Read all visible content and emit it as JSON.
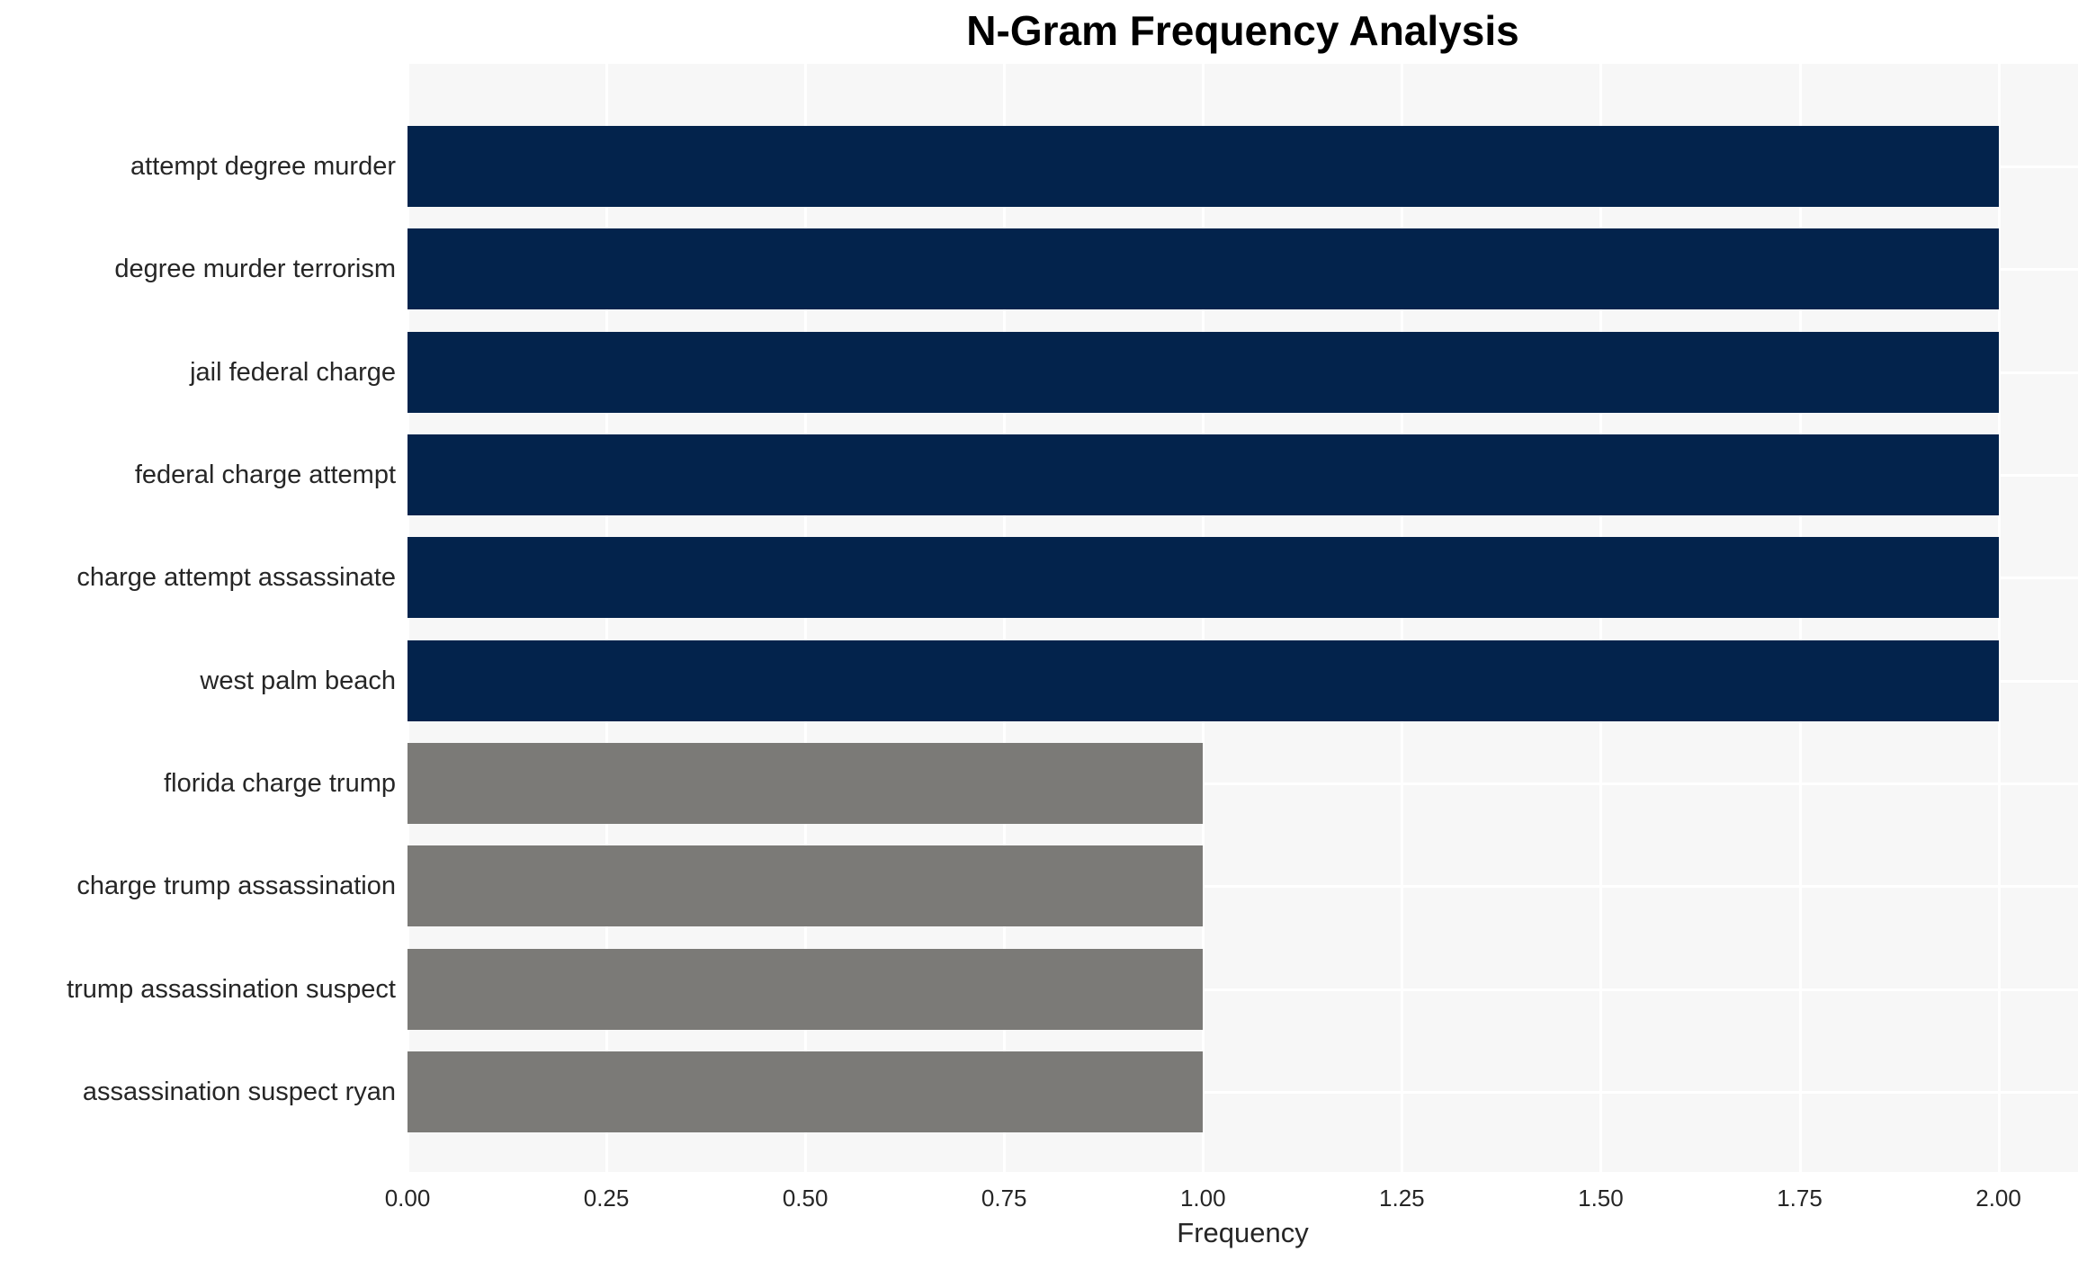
{
  "title": "N-Gram Frequency Analysis",
  "x_axis": {
    "label": "Frequency",
    "tick_labels": [
      "0.00",
      "0.25",
      "0.50",
      "0.75",
      "1.00",
      "1.25",
      "1.50",
      "1.75",
      "2.00"
    ],
    "tick_values": [
      0,
      0.25,
      0.5,
      0.75,
      1.0,
      1.25,
      1.5,
      1.75,
      2.0
    ]
  },
  "colors": {
    "navy_bar": "#03234c",
    "gray_bar": "#7b7a77",
    "plot_background": "#f7f7f7",
    "gridline": "#ffffff",
    "text": "#262626",
    "title_text": "#000000"
  },
  "chart_data": {
    "type": "bar",
    "orientation": "horizontal",
    "title": "N-Gram Frequency Analysis",
    "xlabel": "Frequency",
    "ylabel": "",
    "categories": [
      "attempt degree murder",
      "degree murder terrorism",
      "jail federal charge",
      "federal charge attempt",
      "charge attempt assassinate",
      "west palm beach",
      "florida charge trump",
      "charge trump assassination",
      "trump assassination suspect",
      "assassination suspect ryan"
    ],
    "values": [
      2,
      2,
      2,
      2,
      2,
      2,
      1,
      1,
      1,
      1
    ],
    "bar_colors": [
      "#03234c",
      "#03234c",
      "#03234c",
      "#03234c",
      "#03234c",
      "#03234c",
      "#7b7a77",
      "#7b7a77",
      "#7b7a77",
      "#7b7a77"
    ],
    "xlim": [
      0,
      2.1
    ],
    "xticks": [
      0,
      0.25,
      0.5,
      0.75,
      1.0,
      1.25,
      1.5,
      1.75,
      2.0
    ],
    "grid": true,
    "legend": false
  }
}
